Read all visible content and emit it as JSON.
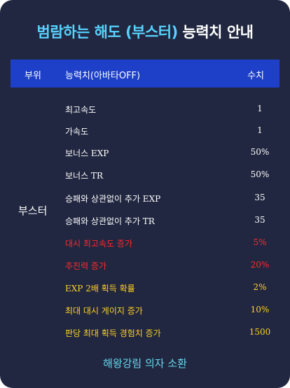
{
  "title": {
    "highlight": "범람하는 해도 (부스터)",
    "rest": " 능력치 안내"
  },
  "colors": {
    "background": "#212740",
    "header": "#1e40c9",
    "accent": "#58d3ff",
    "red": "#ff2a2a",
    "yellow": "#ffd126",
    "footer": "#66d8ee"
  },
  "table": {
    "headers": {
      "part": "부위",
      "ability": "능력치(아바타OFF)",
      "value": "수치"
    },
    "section": "부스터",
    "rows": [
      {
        "name": "최고속도",
        "value": "1",
        "color": "white"
      },
      {
        "name": "가속도",
        "value": "1",
        "color": "white"
      },
      {
        "name": "보너스 EXP",
        "value": "50%",
        "color": "white"
      },
      {
        "name": "보너스 TR",
        "value": "50%",
        "color": "white"
      },
      {
        "name": "승패와 상관없이 추가 EXP",
        "value": "35",
        "color": "white"
      },
      {
        "name": "승패와 상관없이 추가 TR",
        "value": "35",
        "color": "white"
      },
      {
        "name": "대시 최고속도 증가",
        "value": "5%",
        "color": "red"
      },
      {
        "name": "추진력 증가",
        "value": "20%",
        "color": "red"
      },
      {
        "name": "EXP 2배 획득 확률",
        "value": "2%",
        "color": "yellow"
      },
      {
        "name": "최대 대시 게이지 증가",
        "value": "10%",
        "color": "yellow"
      },
      {
        "name": "판당 최대 획득 경험치 증가",
        "value": "1500",
        "color": "yellow"
      }
    ]
  },
  "footer": "해왕강림 의자 소환"
}
